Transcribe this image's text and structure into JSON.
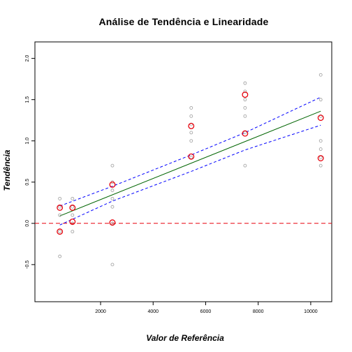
{
  "chart_data": {
    "type": "scatter",
    "title": "Análise de Tendência e Linearidade",
    "xlabel": "Valor de Referência",
    "ylabel": "Tendência",
    "xlim": [
      -500,
      10800
    ],
    "ylim": [
      -0.95,
      2.2
    ],
    "x_ticks": [
      2000,
      4000,
      6000,
      8000,
      10000
    ],
    "x_tick_labels": [
      "2000",
      "4000",
      "6000",
      "8000",
      "10000"
    ],
    "y_ticks": [
      -0.5,
      0.0,
      0.5,
      1.0,
      1.5,
      2.0
    ],
    "y_tick_labels": [
      "-0.5",
      "0.0",
      "0.5",
      "1.0",
      "1.5",
      "2.0"
    ],
    "grid": false,
    "series": [
      {
        "role": "observations",
        "color": "#9a9a9a",
        "points": [
          [
            448,
            0.3
          ],
          [
            448,
            0.2
          ],
          [
            448,
            0.1
          ],
          [
            448,
            -0.1
          ],
          [
            448,
            -0.4
          ],
          [
            930,
            0.3
          ],
          [
            930,
            0.2
          ],
          [
            930,
            0.1
          ],
          [
            930,
            0.0
          ],
          [
            930,
            -0.1
          ],
          [
            2450,
            0.7
          ],
          [
            2450,
            0.5
          ],
          [
            2450,
            0.4
          ],
          [
            2450,
            0.3
          ],
          [
            2450,
            0.2
          ],
          [
            2450,
            0.0
          ],
          [
            2450,
            -0.5
          ],
          [
            5450,
            1.4
          ],
          [
            5450,
            1.3
          ],
          [
            5450,
            1.2
          ],
          [
            5450,
            1.1
          ],
          [
            5450,
            1.0
          ],
          [
            5450,
            0.8
          ],
          [
            7500,
            1.7
          ],
          [
            7500,
            1.6
          ],
          [
            7500,
            1.5
          ],
          [
            7500,
            1.4
          ],
          [
            7500,
            1.3
          ],
          [
            7500,
            1.1
          ],
          [
            7500,
            0.7
          ],
          [
            10380,
            1.8
          ],
          [
            10380,
            1.5
          ],
          [
            10380,
            1.3
          ],
          [
            10380,
            1.0
          ],
          [
            10380,
            0.9
          ],
          [
            10380,
            0.8
          ],
          [
            10380,
            0.7
          ]
        ]
      },
      {
        "role": "bias-estimates",
        "color": "#e8000b",
        "points": [
          [
            448,
            0.19
          ],
          [
            448,
            -0.1
          ],
          [
            930,
            0.19
          ],
          [
            930,
            0.02
          ],
          [
            2450,
            0.47
          ],
          [
            2450,
            0.01
          ],
          [
            5450,
            1.18
          ],
          [
            5450,
            0.81
          ],
          [
            7500,
            1.56
          ],
          [
            7500,
            1.09
          ],
          [
            10380,
            1.28
          ],
          [
            10380,
            0.79
          ]
        ]
      }
    ],
    "fit_line": {
      "color": "#006400",
      "x": [
        448,
        10380
      ],
      "y": [
        0.09,
        1.36
      ]
    },
    "confidence_band": {
      "color": "#0000ff",
      "upper": {
        "x": [
          448,
          2450,
          5450,
          7500,
          10380
        ],
        "y": [
          0.21,
          0.45,
          0.83,
          1.1,
          1.53
        ]
      },
      "lower": {
        "x": [
          448,
          2450,
          5450,
          7500,
          10380
        ],
        "y": [
          -0.02,
          0.27,
          0.63,
          0.89,
          1.19
        ]
      }
    },
    "reference_line": {
      "color": "#e8000b",
      "y": 0.0
    }
  }
}
